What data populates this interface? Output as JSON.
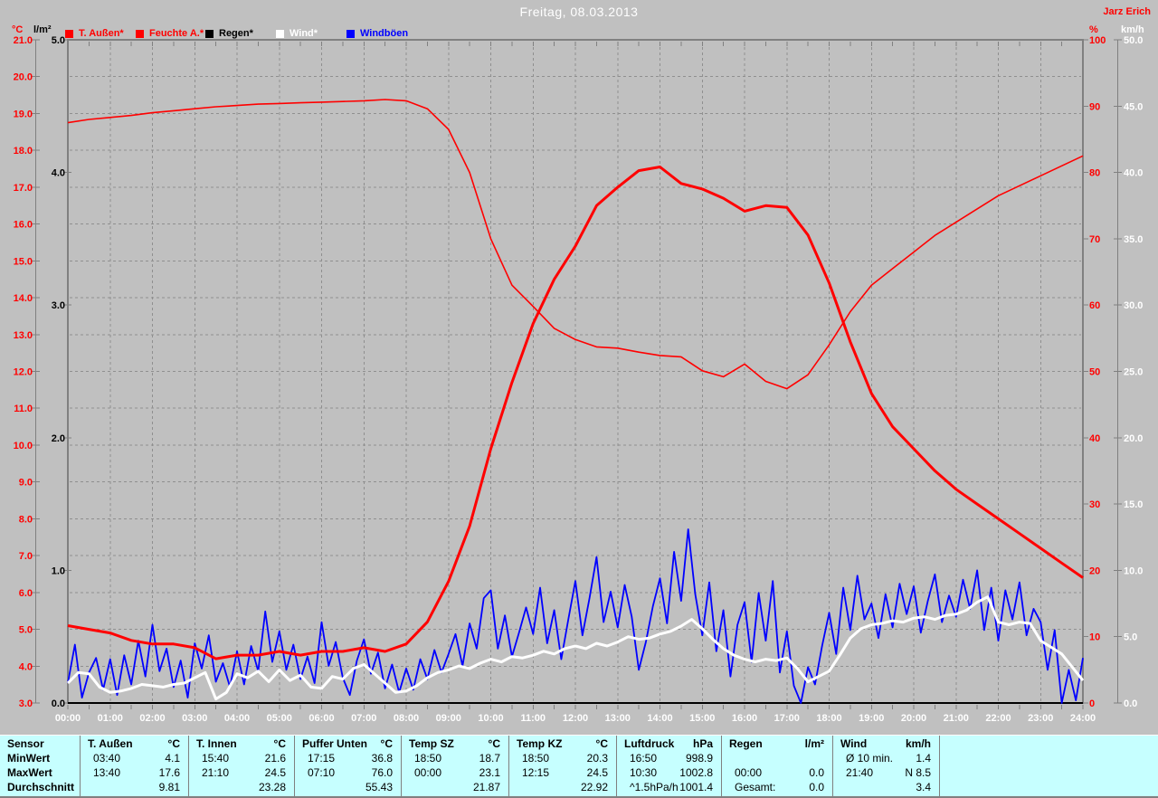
{
  "header": {
    "title": "Freitag, 08.03.2013",
    "watermark": "Jarz Erich"
  },
  "colors": {
    "background": "#c0c0c0",
    "plot_border": "#808080",
    "grid": "#8f8f8f",
    "table_background": "#c6ffff",
    "title_text": "#ffffff",
    "temp_series": "#ff0000",
    "humidity_series": "#ff0000",
    "rain_series": "#000000",
    "wind_series": "#ffffff",
    "gust_series": "#0000ff"
  },
  "legend": [
    {
      "label": "T. Außen*",
      "color": "#ff0000"
    },
    {
      "label": "Feuchte A.*",
      "color": "#ff0000"
    },
    {
      "label": "Regen*",
      "color": "#000000"
    },
    {
      "label": "Wind*",
      "color": "#ffffff"
    },
    {
      "label": "Windböen",
      "color": "#0000ff"
    }
  ],
  "axes": {
    "left_temp": {
      "unit": "°C",
      "color": "#ff0000",
      "min": 3,
      "max": 21,
      "ticks": [
        "21.0",
        "20.0",
        "19.0",
        "18.0",
        "17.0",
        "16.0",
        "15.0",
        "14.0",
        "13.0",
        "12.0",
        "11.0",
        "10.0",
        "9.0",
        "8.0",
        "7.0",
        "6.0",
        "5.0",
        "4.0",
        "3.0"
      ]
    },
    "left_rain": {
      "unit": "l/m²",
      "color": "#000000",
      "min": 0,
      "max": 5,
      "ticks": [
        "5.0",
        "4.0",
        "3.0",
        "2.0",
        "1.0",
        "0.0"
      ]
    },
    "right_hum": {
      "unit": "%",
      "color": "#ff0000",
      "min": 0,
      "max": 100,
      "ticks": [
        "100",
        "90",
        "80",
        "70",
        "60",
        "50",
        "40",
        "30",
        "20",
        "10",
        "0"
      ]
    },
    "right_wind": {
      "unit": "km/h",
      "color": "#ffffff",
      "min": 0,
      "max": 50,
      "ticks": [
        "50.0",
        "45.0",
        "40.0",
        "35.0",
        "30.0",
        "25.0",
        "20.0",
        "15.0",
        "10.0",
        "5.0",
        "0.0"
      ]
    },
    "x_time": {
      "ticks": [
        "00:00",
        "01:00",
        "02:00",
        "03:00",
        "04:00",
        "05:00",
        "06:00",
        "07:00",
        "08:00",
        "09:00",
        "10:00",
        "11:00",
        "12:00",
        "13:00",
        "14:00",
        "15:00",
        "16:00",
        "17:00",
        "18:00",
        "19:00",
        "20:00",
        "21:00",
        "22:00",
        "23:00",
        "24:00"
      ]
    }
  },
  "chart_data": {
    "type": "line",
    "title": "Freitag, 08.03.2013",
    "x_unit": "hours",
    "x_range": [
      0,
      24
    ],
    "grid": "dashed, vertical each hour, horizontal each 1°C (4–20°C)",
    "legend_position": "top",
    "series": [
      {
        "name": "Regen",
        "unit": "l/m²",
        "axis_range": [
          0,
          5
        ],
        "color": "#000000",
        "width": 2,
        "interval_min": 720,
        "values": [
          0,
          0,
          0
        ]
      },
      {
        "name": "Windböen",
        "unit": "km/h",
        "axis_range": [
          0,
          50
        ],
        "color": "#0000ff",
        "width": 1.8,
        "interval_min": 10,
        "values": [
          1.5,
          4.4,
          0.4,
          2.3,
          3.4,
          1.0,
          3.3,
          0.6,
          3.6,
          1.4,
          4.7,
          2.0,
          5.9,
          2.4,
          4.1,
          1.2,
          3.2,
          0.4,
          4.5,
          2.6,
          5.1,
          1.6,
          3.0,
          1.2,
          3.9,
          1.4,
          4.3,
          2.4,
          6.9,
          3.1,
          5.4,
          2.5,
          4.4,
          1.8,
          3.5,
          1.5,
          6.1,
          2.8,
          4.6,
          1.9,
          0.6,
          3.2,
          4.8,
          2.2,
          3.8,
          1.1,
          2.9,
          0.8,
          2.6,
          1.0,
          3.3,
          1.8,
          4.0,
          2.3,
          3.7,
          5.2,
          2.8,
          6.0,
          4.1,
          7.9,
          8.5,
          4.1,
          6.6,
          3.5,
          5.3,
          7.2,
          5.2,
          8.7,
          4.5,
          7.0,
          3.3,
          6.3,
          9.2,
          5.1,
          7.9,
          11.0,
          6.1,
          8.4,
          5.7,
          8.9,
          6.5,
          2.5,
          4.6,
          7.3,
          9.4,
          6.0,
          11.4,
          7.7,
          13.1,
          8.2,
          5.1,
          9.1,
          3.9,
          7.0,
          2.0,
          5.9,
          7.6,
          3.1,
          8.3,
          4.7,
          9.2,
          2.3,
          5.4,
          1.3,
          0.0,
          2.7,
          1.4,
          4.3,
          6.8,
          3.7,
          8.7,
          5.5,
          9.6,
          6.3,
          7.5,
          4.9,
          8.2,
          5.7,
          9.0,
          6.7,
          8.8,
          5.3,
          7.7,
          9.7,
          6.1,
          8.1,
          6.5,
          9.3,
          7.1,
          10.0,
          5.5,
          8.7,
          4.7,
          8.5,
          6.3,
          9.1,
          5.1,
          7.1,
          6.1,
          2.5,
          5.5,
          0.0,
          2.5,
          0.2,
          3.4
        ]
      },
      {
        "name": "Feuchte A.",
        "unit": "%",
        "axis_range": [
          0,
          100
        ],
        "color": "#ff0000",
        "width": 1.6,
        "interval_min": 30,
        "values": [
          87.5,
          88.0,
          88.3,
          88.6,
          89.0,
          89.3,
          89.6,
          89.9,
          90.1,
          90.3,
          90.4,
          90.5,
          90.6,
          90.7,
          90.8,
          91.0,
          90.8,
          89.6,
          86.5,
          80.0,
          70.0,
          63.0,
          59.8,
          56.5,
          54.8,
          53.7,
          53.5,
          52.9,
          52.4,
          52.2,
          50.1,
          49.2,
          51.1,
          48.5,
          47.4,
          49.5,
          54.0,
          59.0,
          63.0,
          65.5,
          68.0,
          70.5,
          72.5,
          74.5,
          76.5,
          78.0,
          79.5,
          81.0,
          82.5
        ]
      },
      {
        "name": "T. Außen",
        "unit": "°C",
        "axis_range": [
          3,
          21
        ],
        "color": "#ff0000",
        "width": 3,
        "interval_min": 30,
        "values": [
          5.1,
          5.0,
          4.9,
          4.7,
          4.6,
          4.6,
          4.5,
          4.2,
          4.3,
          4.3,
          4.4,
          4.3,
          4.4,
          4.4,
          4.5,
          4.4,
          4.6,
          5.2,
          6.3,
          7.8,
          9.9,
          11.7,
          13.3,
          14.5,
          15.4,
          16.5,
          17.0,
          17.45,
          17.55,
          17.1,
          16.95,
          16.7,
          16.35,
          16.5,
          16.45,
          15.7,
          14.4,
          12.8,
          11.4,
          10.5,
          9.9,
          9.3,
          8.8,
          8.4,
          8.0,
          7.6,
          7.2,
          6.8,
          6.4
        ]
      },
      {
        "name": "Wind",
        "unit": "km/h",
        "axis_range": [
          0,
          50
        ],
        "color": "#ffffff",
        "width": 3,
        "interval_min": 15,
        "values": [
          1.5,
          2.3,
          2.2,
          1.2,
          0.8,
          0.9,
          1.1,
          1.4,
          1.3,
          1.2,
          1.4,
          1.5,
          1.9,
          2.3,
          0.3,
          0.8,
          2.2,
          1.9,
          2.4,
          1.6,
          2.5,
          1.7,
          2.1,
          1.2,
          1.1,
          2.0,
          1.8,
          2.6,
          2.9,
          2.2,
          1.5,
          0.8,
          0.9,
          1.3,
          1.9,
          2.3,
          2.5,
          2.8,
          2.6,
          3.0,
          3.3,
          3.1,
          3.5,
          3.4,
          3.6,
          3.9,
          3.7,
          4.1,
          4.3,
          4.1,
          4.5,
          4.3,
          4.6,
          5.0,
          4.8,
          4.9,
          5.2,
          5.4,
          5.8,
          6.3,
          5.6,
          4.8,
          4.1,
          3.6,
          3.3,
          3.1,
          3.3,
          3.2,
          3.4,
          2.6,
          1.6,
          2.0,
          2.4,
          3.6,
          4.9,
          5.6,
          5.9,
          6.0,
          6.2,
          6.1,
          6.4,
          6.5,
          6.3,
          6.6,
          6.7,
          7.0,
          7.6,
          8.0,
          6.1,
          5.9,
          6.1,
          6.0,
          4.7,
          4.2,
          3.7,
          2.7,
          1.7
        ]
      }
    ]
  },
  "table": {
    "row_labels": [
      "Sensor",
      "MinWert",
      "MaxWert",
      "Durchschnitt"
    ],
    "columns": [
      {
        "name": "T. Außen",
        "unit": "°C",
        "min": [
          "03:40",
          "4.1"
        ],
        "max": [
          "13:40",
          "17.6"
        ],
        "avg": [
          "",
          "9.81"
        ]
      },
      {
        "name": "T. Innen",
        "unit": "°C",
        "min": [
          "15:40",
          "21.6"
        ],
        "max": [
          "21:10",
          "24.5"
        ],
        "avg": [
          "",
          "23.28"
        ]
      },
      {
        "name": "Puffer Unten",
        "unit": "°C",
        "min": [
          "17:15",
          "36.8"
        ],
        "max": [
          "07:10",
          "76.0"
        ],
        "avg": [
          "",
          "55.43"
        ]
      },
      {
        "name": "Temp SZ",
        "unit": "°C",
        "min": [
          "18:50",
          "18.7"
        ],
        "max": [
          "00:00",
          "23.1"
        ],
        "avg": [
          "",
          "21.87"
        ]
      },
      {
        "name": "Temp KZ",
        "unit": "°C",
        "min": [
          "18:50",
          "20.3"
        ],
        "max": [
          "12:15",
          "24.5"
        ],
        "avg": [
          "",
          "22.92"
        ]
      },
      {
        "name": "Luftdruck",
        "unit": "hPa",
        "min": [
          "16:50",
          "998.9"
        ],
        "max": [
          "10:30",
          "1002.8"
        ],
        "avg": [
          "^1.5hPa/h",
          "1001.4"
        ]
      },
      {
        "name": "Regen",
        "unit": "l/m²",
        "min": [
          "",
          ""
        ],
        "max": [
          "00:00",
          "0.0"
        ],
        "avg": [
          "Gesamt:",
          "0.0"
        ]
      },
      {
        "name": "Wind",
        "unit": "km/h",
        "min": [
          "Ø 10 min.",
          "1.4"
        ],
        "max": [
          "21:40",
          "N 8.5"
        ],
        "avg": [
          "",
          "3.4"
        ]
      }
    ]
  }
}
